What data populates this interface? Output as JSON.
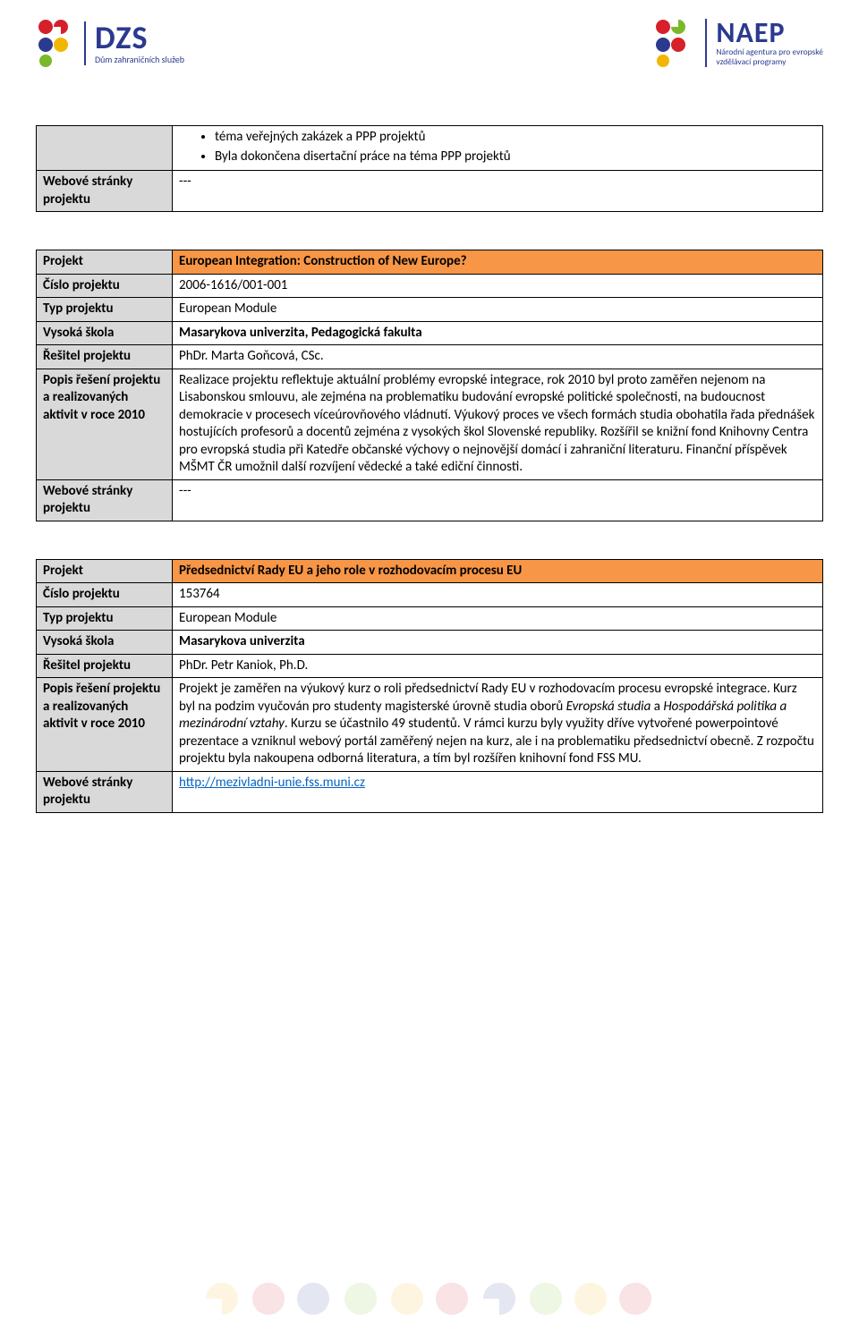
{
  "header": {
    "dzs_abbr": "DZS",
    "dzs_sub": "Dům zahraničních služeb",
    "naep_abbr": "NAEP",
    "naep_sub1": "Národní agentura pro evropské",
    "naep_sub2": "vzdělávací programy",
    "colors": {
      "brand_navy": "#2b3a8f",
      "red": "#d6202a",
      "yellow": "#f2b600",
      "green": "#7ab929"
    }
  },
  "table1": {
    "rows": [
      {
        "label": "",
        "bullets": [
          "téma veřejných zakázek a PPP projektů",
          "Byla dokončena disertační práce na téma PPP projektů"
        ]
      },
      {
        "label": "Webové stránky projektu",
        "value": "---"
      }
    ]
  },
  "table2": {
    "header_label": "Projekt",
    "header_value": "European Integration: Construction of New Europe?",
    "rows": [
      {
        "label": "Číslo projektu",
        "value": "2006-1616/001-001"
      },
      {
        "label": "Typ projektu",
        "value": "European Module"
      },
      {
        "label": "Vysoká škola",
        "value": "Masarykova univerzita, Pedagogická fakulta",
        "bold": true
      },
      {
        "label": "Řešitel projektu",
        "value": "PhDr. Marta Goňcová, CSc."
      },
      {
        "label": "Popis řešení projektu a realizovaných aktivit v roce 2010",
        "value": "Realizace projektu reflektuje aktuální problémy evropské integrace, rok 2010 byl proto zaměřen nejenom na Lisabonskou smlouvu, ale zejména na problematiku budování evropské politické společnosti, na budoucnost demokracie v procesech víceúrovňového vládnutí. Výukový proces ve všech formách studia obohatila řada přednášek hostujících profesorů a docentů zejména z vysokých škol Slovenské republiky. Rozšířil se knižní fond Knihovny Centra pro evropská studia při Katedře občanské výchovy o nejnovější domácí i zahraniční literaturu. Finanční příspěvek MŠMT ČR umožnil další rozvíjení vědecké a také ediční činnosti.",
        "justify": true
      },
      {
        "label": "Webové stránky projektu",
        "value": "---"
      }
    ]
  },
  "table3": {
    "header_label": "Projekt",
    "header_value": "Předsednictví Rady EU a jeho role v rozhodovacím procesu EU",
    "rows": [
      {
        "label": "Číslo projektu",
        "value": "153764"
      },
      {
        "label": "Typ projektu",
        "value": "European Module"
      },
      {
        "label": "Vysoká škola",
        "value": "Masarykova univerzita",
        "bold": true
      },
      {
        "label": "Řešitel projektu",
        "value": "PhDr. Petr Kaniok, Ph.D."
      },
      {
        "label": "Popis řešení projektu a realizovaných aktivit v roce 2010",
        "value_html": "Projekt je zaměřen na výukový kurz o roli předsednictví Rady EU v rozhodovacím procesu evropské integrace. Kurz byl na podzim vyučován pro studenty magisterské úrovně studia oborů <span class='italic'>Evropská studia</span> a <span class='italic'>Hospodářská politika a mezinárodní vztahy</span>. Kurzu se účastnilo 49 studentů. V rámci kurzu byly využity dříve vytvořené powerpointové prezentace a vzniknul webový portál zaměřený nejen na kurz, ale i na problematiku předsednictví obecně. Z rozpočtu projektu byla nakoupena odborná literatura, a tím byl rozšířen knihovní fond FSS MU.",
        "justify": true
      },
      {
        "label": "Webové stránky projektu",
        "link": "http://mezivladni-unie.fss.muni.cz"
      }
    ]
  },
  "styling": {
    "label_bg": "#d9d9d9",
    "header_row_bg": "#f79646",
    "border_color": "#000000",
    "link_color": "#0563c1",
    "watermark_colors": [
      "#f2b600",
      "#d6202a",
      "#2b3a8f",
      "#7ab929"
    ]
  }
}
